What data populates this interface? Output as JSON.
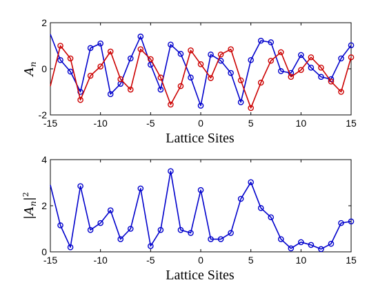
{
  "chart_data": [
    {
      "type": "line",
      "xlabel": "Lattice Sites",
      "ylabel": "A",
      "ylabel_sub": "n",
      "xlim": [
        -15,
        15
      ],
      "ylim": [
        -2,
        2
      ],
      "xticks": [
        "-15",
        "-10",
        "-5",
        "0",
        "5",
        "10",
        "15"
      ],
      "yticks": [
        "-2",
        "0",
        "2"
      ],
      "x": [
        -15,
        -14,
        -13,
        -12,
        -11,
        -10,
        -9,
        -8,
        -7,
        -6,
        -5,
        -4,
        -3,
        -2,
        -1,
        0,
        1,
        2,
        3,
        4,
        5,
        6,
        7,
        8,
        9,
        10,
        11,
        12,
        13,
        14,
        15
      ],
      "series": [
        {
          "color": "#0000cc",
          "markers_from": -14,
          "values": [
            1.5,
            0.38,
            -0.12,
            -1.0,
            0.9,
            1.1,
            -1.1,
            -0.65,
            0.45,
            1.4,
            0.18,
            -0.9,
            1.05,
            0.65,
            -0.38,
            -1.6,
            0.62,
            0.35,
            -0.18,
            -1.45,
            0.38,
            1.22,
            1.15,
            -0.1,
            -0.18,
            0.6,
            0.05,
            -0.35,
            -0.45,
            0.45,
            1.02
          ]
        },
        {
          "color": "#cc0000",
          "markers_from": -14,
          "values": [
            -0.75,
            1.0,
            0.45,
            -1.35,
            -0.3,
            0.1,
            0.75,
            -0.45,
            -0.9,
            0.85,
            0.42,
            -0.38,
            -1.55,
            -0.75,
            0.8,
            0.2,
            -0.4,
            0.62,
            0.85,
            -0.5,
            -1.7,
            -0.6,
            0.35,
            0.72,
            -0.35,
            -0.05,
            0.5,
            0.05,
            -0.55,
            -1.0,
            0.5
          ]
        }
      ]
    },
    {
      "type": "line",
      "xlabel": "Lattice Sites",
      "ylabel": "|A",
      "ylabel_sub": "n",
      "ylabel_close": "|",
      "ylabel_sup": "2",
      "xlim": [
        -15,
        15
      ],
      "ylim": [
        0,
        4
      ],
      "xticks": [
        "-15",
        "-10",
        "-5",
        "0",
        "5",
        "10",
        "15"
      ],
      "yticks": [
        "0",
        "2",
        "4"
      ],
      "x": [
        -15,
        -14,
        -13,
        -12,
        -11,
        -10,
        -9,
        -8,
        -7,
        -6,
        -5,
        -4,
        -3,
        -2,
        -1,
        0,
        1,
        2,
        3,
        4,
        5,
        6,
        7,
        8,
        9,
        10,
        11,
        12,
        13,
        14,
        15
      ],
      "series": [
        {
          "color": "#0000cc",
          "markers_from": -14,
          "values": [
            2.9,
            1.15,
            0.2,
            2.85,
            0.95,
            1.25,
            1.8,
            0.55,
            1.0,
            2.75,
            0.25,
            0.95,
            3.5,
            0.95,
            0.82,
            2.68,
            0.55,
            0.55,
            0.82,
            2.3,
            3.02,
            1.9,
            1.5,
            0.55,
            0.15,
            0.42,
            0.3,
            0.12,
            0.35,
            1.25,
            1.32
          ]
        }
      ]
    }
  ]
}
